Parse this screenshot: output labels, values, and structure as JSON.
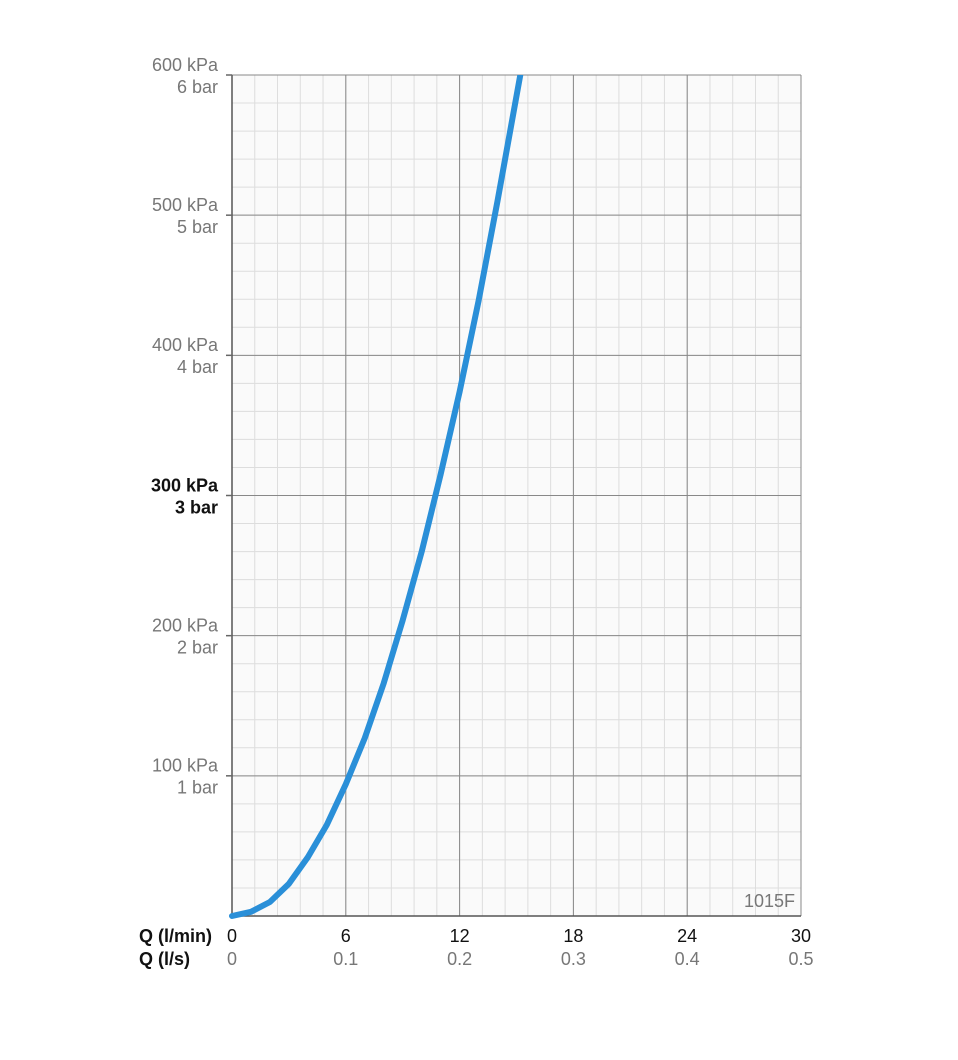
{
  "chart_data": {
    "type": "line",
    "xlabel": "Q (l/min)",
    "x2label": "Q (l/s)",
    "annotation": "1015F",
    "xlim": [
      0,
      30
    ],
    "xticks": [
      0,
      6,
      12,
      18,
      24,
      30
    ],
    "x2lim": [
      0,
      0.5
    ],
    "x2ticks": [
      0,
      0.1,
      0.2,
      0.3,
      0.4,
      0.5
    ],
    "ylim": [
      0,
      600
    ],
    "yticks": [
      {
        "value": 100,
        "label": "100 kPa"
      },
      {
        "value": 200,
        "label": "200 kPa"
      },
      {
        "value": 300,
        "label": "300 kPa"
      },
      {
        "value": 400,
        "label": "400 kPa"
      },
      {
        "value": 500,
        "label": "500 kPa"
      },
      {
        "value": 600,
        "label": "600 kPa"
      }
    ],
    "ytick_sublabels": [
      "1 bar",
      "2 bar",
      "3 bar",
      "4 bar",
      "5 bar",
      "6 bar"
    ],
    "highlight_ytick": 300,
    "grid": true,
    "minor_grid": {
      "x": 1.2,
      "y": 20
    },
    "series": [
      {
        "color": "#2a8fd8",
        "x": [
          0,
          1,
          2,
          3,
          4,
          5,
          6,
          7,
          8,
          9,
          10,
          11,
          12,
          13,
          14,
          15,
          15.2
        ],
        "values": [
          0,
          3,
          10,
          23,
          42,
          65,
          94,
          127,
          166,
          211,
          260,
          315,
          374,
          439,
          510,
          585,
          600
        ]
      }
    ]
  }
}
